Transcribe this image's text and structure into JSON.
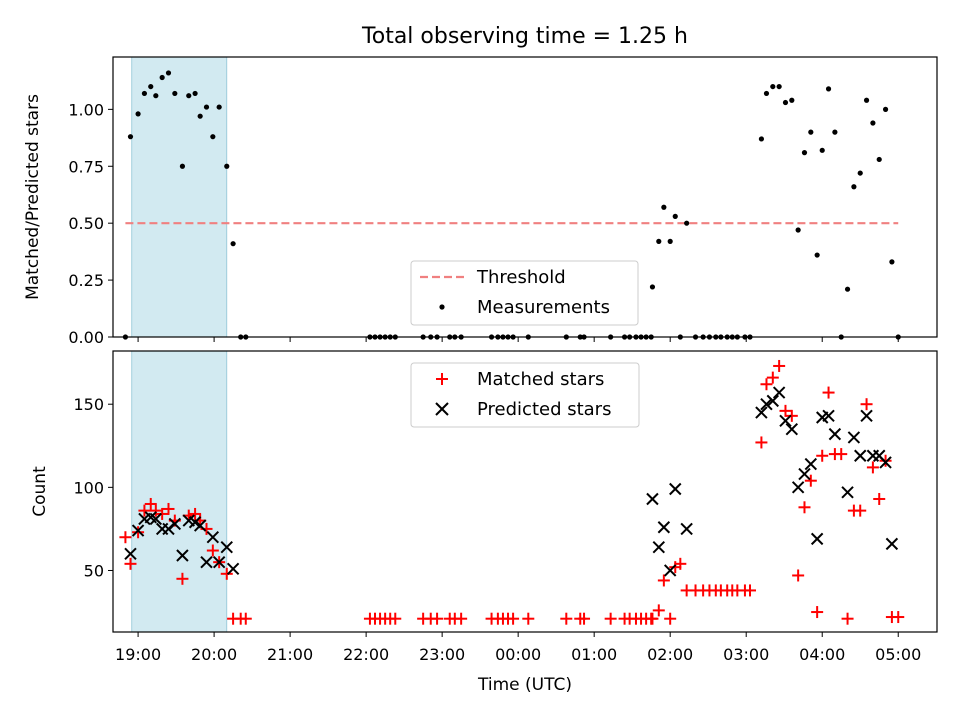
{
  "chart_data": [
    {
      "type": "scatter",
      "title": "Total observing time = 1.25 h",
      "xlabel": "",
      "ylabel": "Matched/Predicted stars",
      "xlim_hours": [
        18.67,
        29.51
      ],
      "ylim": [
        0.0,
        1.23
      ],
      "yticks": [
        0.0,
        0.25,
        0.5,
        0.75,
        1.0
      ],
      "ytick_labels": [
        "0.00",
        "0.25",
        "0.50",
        "0.75",
        "1.00"
      ],
      "shaded_span": {
        "start": "18:55",
        "end": "20:10",
        "color": "#add8e6"
      },
      "threshold": {
        "value": 0.5,
        "x_from": "18:50",
        "x_to": "05:00",
        "color": "#f08080"
      },
      "legend": {
        "position": "lower center",
        "entries": [
          "Threshold",
          "Measurements"
        ]
      },
      "series": [
        {
          "name": "Measurements",
          "color": "#000000",
          "points": [
            [
              "18:50",
              0.0
            ],
            [
              "18:54",
              0.88
            ],
            [
              "19:00",
              0.98
            ],
            [
              "19:05",
              1.07
            ],
            [
              "19:10",
              1.1
            ],
            [
              "19:14",
              1.06
            ],
            [
              "19:19",
              1.14
            ],
            [
              "19:24",
              1.16
            ],
            [
              "19:29",
              1.07
            ],
            [
              "19:35",
              0.75
            ],
            [
              "19:40",
              1.06
            ],
            [
              "19:45",
              1.07
            ],
            [
              "19:49",
              0.97
            ],
            [
              "19:54",
              1.01
            ],
            [
              "19:59",
              0.88
            ],
            [
              "20:04",
              1.01
            ],
            [
              "20:10",
              0.75
            ],
            [
              "20:15",
              0.41
            ],
            [
              "20:21",
              0.0
            ],
            [
              "20:25",
              0.0
            ],
            [
              "22:03",
              0.0
            ],
            [
              "22:07",
              0.0
            ],
            [
              "22:11",
              0.0
            ],
            [
              "22:15",
              0.0
            ],
            [
              "22:19",
              0.0
            ],
            [
              "22:23",
              0.0
            ],
            [
              "22:45",
              0.0
            ],
            [
              "22:51",
              0.0
            ],
            [
              "22:56",
              0.0
            ],
            [
              "23:06",
              0.0
            ],
            [
              "23:10",
              0.0
            ],
            [
              "23:15",
              0.0
            ],
            [
              "23:39",
              0.0
            ],
            [
              "23:44",
              0.0
            ],
            [
              "23:48",
              0.0
            ],
            [
              "23:52",
              0.0
            ],
            [
              "23:56",
              0.0
            ],
            [
              "00:08",
              0.0
            ],
            [
              "00:38",
              0.0
            ],
            [
              "00:49",
              0.0
            ],
            [
              "00:52",
              0.0
            ],
            [
              "01:13",
              0.0
            ],
            [
              "01:24",
              0.0
            ],
            [
              "01:28",
              0.0
            ],
            [
              "01:33",
              0.0
            ],
            [
              "01:37",
              0.0
            ],
            [
              "01:41",
              0.0
            ],
            [
              "01:45",
              0.0
            ],
            [
              "01:46",
              0.22
            ],
            [
              "01:51",
              0.42
            ],
            [
              "01:55",
              0.57
            ],
            [
              "02:00",
              0.42
            ],
            [
              "02:04",
              0.53
            ],
            [
              "02:08",
              0.0
            ],
            [
              "02:13",
              0.5
            ],
            [
              "02:20",
              0.0
            ],
            [
              "02:26",
              0.0
            ],
            [
              "02:31",
              0.0
            ],
            [
              "02:36",
              0.0
            ],
            [
              "02:40",
              0.0
            ],
            [
              "02:45",
              0.0
            ],
            [
              "02:49",
              0.0
            ],
            [
              "02:53",
              0.0
            ],
            [
              "02:59",
              0.0
            ],
            [
              "03:03",
              0.0
            ],
            [
              "03:12",
              0.87
            ],
            [
              "03:16",
              1.07
            ],
            [
              "03:21",
              1.1
            ],
            [
              "03:26",
              1.1
            ],
            [
              "03:31",
              1.03
            ],
            [
              "03:36",
              1.04
            ],
            [
              "03:41",
              0.47
            ],
            [
              "03:46",
              0.81
            ],
            [
              "03:51",
              0.9
            ],
            [
              "03:56",
              0.36
            ],
            [
              "04:00",
              0.82
            ],
            [
              "04:05",
              1.09
            ],
            [
              "04:10",
              0.9
            ],
            [
              "04:15",
              0.0
            ],
            [
              "04:20",
              0.21
            ],
            [
              "04:25",
              0.66
            ],
            [
              "04:30",
              0.72
            ],
            [
              "04:35",
              1.04
            ],
            [
              "04:40",
              0.94
            ],
            [
              "04:45",
              0.78
            ],
            [
              "04:50",
              1.0
            ],
            [
              "04:55",
              0.33
            ],
            [
              "05:00",
              0.0
            ]
          ]
        }
      ]
    },
    {
      "type": "scatter",
      "xlabel": "Time (UTC)",
      "ylabel": "Count",
      "xlim_hours": [
        18.67,
        29.51
      ],
      "ylim": [
        13,
        182
      ],
      "yticks": [
        50,
        100,
        150
      ],
      "ytick_labels": [
        "50",
        "100",
        "150"
      ],
      "xticks": [
        "19:00",
        "20:00",
        "21:00",
        "22:00",
        "23:00",
        "00:00",
        "01:00",
        "02:00",
        "03:00",
        "04:00",
        "05:00"
      ],
      "shaded_span": {
        "start": "18:55",
        "end": "20:10",
        "color": "#add8e6"
      },
      "legend": {
        "position": "upper center",
        "entries": [
          "Matched stars",
          "Predicted stars"
        ]
      },
      "series": [
        {
          "name": "Matched stars",
          "marker": "+",
          "color": "#ff0000",
          "points": [
            [
              "18:50",
              70
            ],
            [
              "18:54",
              54
            ],
            [
              "19:00",
              73
            ],
            [
              "19:05",
              86
            ],
            [
              "19:10",
              90
            ],
            [
              "19:14",
              86
            ],
            [
              "19:19",
              84
            ],
            [
              "19:24",
              87
            ],
            [
              "19:29",
              80
            ],
            [
              "19:35",
              45
            ],
            [
              "19:40",
              83
            ],
            [
              "19:45",
              84
            ],
            [
              "19:49",
              80
            ],
            [
              "19:54",
              75
            ],
            [
              "19:59",
              62
            ],
            [
              "20:04",
              55
            ],
            [
              "20:10",
              48
            ],
            [
              "20:15",
              21
            ],
            [
              "20:21",
              21
            ],
            [
              "20:25",
              21
            ],
            [
              "22:03",
              21
            ],
            [
              "22:07",
              21
            ],
            [
              "22:11",
              21
            ],
            [
              "22:15",
              21
            ],
            [
              "22:19",
              21
            ],
            [
              "22:23",
              21
            ],
            [
              "22:45",
              21
            ],
            [
              "22:51",
              21
            ],
            [
              "22:56",
              21
            ],
            [
              "23:06",
              21
            ],
            [
              "23:10",
              21
            ],
            [
              "23:15",
              21
            ],
            [
              "23:39",
              21
            ],
            [
              "23:44",
              21
            ],
            [
              "23:48",
              21
            ],
            [
              "23:52",
              21
            ],
            [
              "23:56",
              21
            ],
            [
              "00:08",
              21
            ],
            [
              "00:38",
              21
            ],
            [
              "00:49",
              21
            ],
            [
              "00:52",
              21
            ],
            [
              "01:13",
              21
            ],
            [
              "01:24",
              21
            ],
            [
              "01:28",
              21
            ],
            [
              "01:33",
              21
            ],
            [
              "01:37",
              21
            ],
            [
              "01:41",
              21
            ],
            [
              "01:45",
              21
            ],
            [
              "01:46",
              21
            ],
            [
              "01:51",
              26
            ],
            [
              "01:55",
              44
            ],
            [
              "02:00",
              21
            ],
            [
              "02:04",
              52
            ],
            [
              "02:08",
              54
            ],
            [
              "02:13",
              38
            ],
            [
              "02:20",
              38
            ],
            [
              "02:26",
              38
            ],
            [
              "02:31",
              38
            ],
            [
              "02:36",
              38
            ],
            [
              "02:40",
              38
            ],
            [
              "02:45",
              38
            ],
            [
              "02:49",
              38
            ],
            [
              "02:53",
              38
            ],
            [
              "02:59",
              38
            ],
            [
              "03:03",
              38
            ],
            [
              "03:12",
              127
            ],
            [
              "03:16",
              162
            ],
            [
              "03:21",
              166
            ],
            [
              "03:26",
              173
            ],
            [
              "03:31",
              146
            ],
            [
              "03:36",
              143
            ],
            [
              "03:41",
              47
            ],
            [
              "03:46",
              88
            ],
            [
              "03:51",
              104
            ],
            [
              "03:56",
              25
            ],
            [
              "04:00",
              119
            ],
            [
              "04:05",
              157
            ],
            [
              "04:10",
              120
            ],
            [
              "04:15",
              120
            ],
            [
              "04:20",
              21
            ],
            [
              "04:25",
              86
            ],
            [
              "04:30",
              86
            ],
            [
              "04:35",
              150
            ],
            [
              "04:40",
              112
            ],
            [
              "04:45",
              93
            ],
            [
              "04:50",
              116
            ],
            [
              "04:55",
              22
            ],
            [
              "05:00",
              22
            ]
          ]
        },
        {
          "name": "Predicted stars",
          "marker": "x",
          "color": "#000000",
          "points": [
            [
              "18:54",
              60
            ],
            [
              "19:00",
              74
            ],
            [
              "19:05",
              81
            ],
            [
              "19:10",
              82
            ],
            [
              "19:14",
              81
            ],
            [
              "19:19",
              75
            ],
            [
              "19:24",
              75
            ],
            [
              "19:29",
              78
            ],
            [
              "19:35",
              59
            ],
            [
              "19:40",
              80
            ],
            [
              "19:45",
              79
            ],
            [
              "19:49",
              77
            ],
            [
              "19:54",
              55
            ],
            [
              "19:59",
              70
            ],
            [
              "20:04",
              55
            ],
            [
              "20:10",
              64
            ],
            [
              "20:15",
              51
            ],
            [
              "01:46",
              93
            ],
            [
              "01:51",
              64
            ],
            [
              "01:55",
              76
            ],
            [
              "02:00",
              50
            ],
            [
              "02:04",
              99
            ],
            [
              "02:13",
              75
            ],
            [
              "03:12",
              145
            ],
            [
              "03:16",
              150
            ],
            [
              "03:21",
              152
            ],
            [
              "03:26",
              157
            ],
            [
              "03:31",
              140
            ],
            [
              "03:36",
              135
            ],
            [
              "03:41",
              100
            ],
            [
              "03:46",
              108
            ],
            [
              "03:51",
              114
            ],
            [
              "03:56",
              69
            ],
            [
              "04:00",
              142
            ],
            [
              "04:05",
              143
            ],
            [
              "04:10",
              132
            ],
            [
              "04:20",
              97
            ],
            [
              "04:25",
              130
            ],
            [
              "04:30",
              119
            ],
            [
              "04:35",
              143
            ],
            [
              "04:40",
              119
            ],
            [
              "04:45",
              119
            ],
            [
              "04:50",
              115
            ],
            [
              "04:55",
              66
            ]
          ]
        }
      ]
    }
  ]
}
